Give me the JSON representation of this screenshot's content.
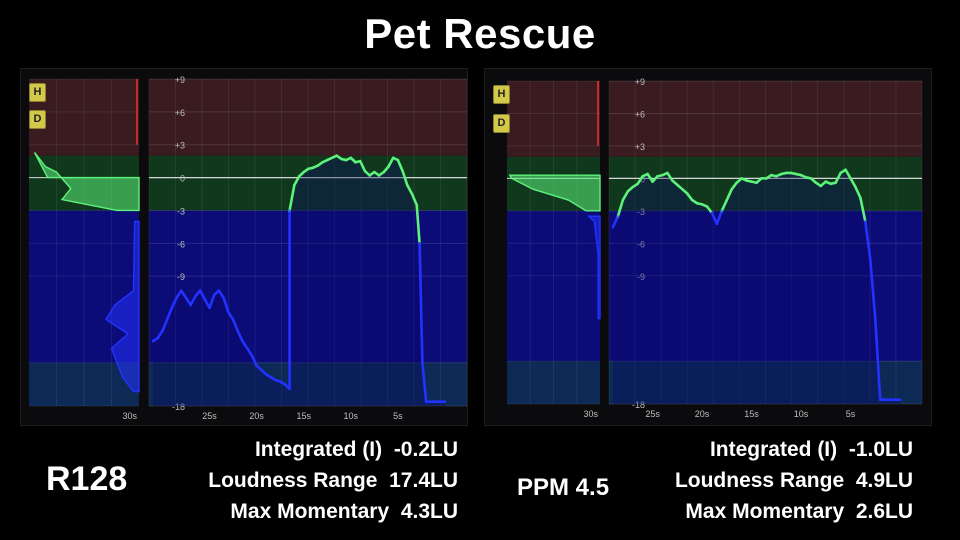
{
  "title": "Pet Rescue",
  "meters": [
    {
      "name": "R128",
      "buttons": [
        "H",
        "D"
      ],
      "stats": [
        {
          "label": "Integrated (I)",
          "value": "-0.2LU"
        },
        {
          "label": "Loudness Range",
          "value": "17.4LU"
        },
        {
          "label": "Max Momentary",
          "value": "4.3LU"
        }
      ]
    },
    {
      "name": "PPM 4.5",
      "buttons": [
        "H",
        "D"
      ],
      "stats": [
        {
          "label": "Integrated (I)",
          "value": "-1.0LU"
        },
        {
          "label": "Loudness Range",
          "value": "4.9LU"
        },
        {
          "label": "Max Momentary",
          "value": "2.6LU"
        }
      ]
    }
  ],
  "chart_data": [
    {
      "type": "line",
      "meter": "R128",
      "ylim": [
        -18,
        9
      ],
      "yticks": [
        "+9",
        "+6",
        "+3",
        "0",
        "-3",
        "-6",
        "-9",
        "-18"
      ],
      "xticks": [
        "30s",
        "25s",
        "20s",
        "15s",
        "10s",
        "5s"
      ],
      "xlim": [
        31,
        0
      ],
      "x": [
        31,
        30.5,
        30,
        29.5,
        29,
        28.5,
        28,
        27.5,
        27,
        26.5,
        26,
        25.5,
        25,
        24.5,
        24,
        23.5,
        23,
        22.5,
        22,
        21.5,
        21,
        20.5,
        20,
        19.5,
        19,
        18.5,
        18,
        17.5,
        17,
        16.5,
        16.5,
        16,
        15.5,
        15,
        14.5,
        14,
        13.5,
        13,
        12.5,
        12,
        11.5,
        11,
        10.5,
        10,
        9.5,
        9,
        8.5,
        8,
        7.5,
        7,
        6.5,
        6,
        5.5,
        5,
        4.5,
        4,
        3.5,
        3,
        2.7,
        2.4,
        2,
        1,
        0
      ],
      "y": [
        -13.5,
        -13.3,
        -12.8,
        -12.0,
        -11.2,
        -10.5,
        -10.0,
        -10.5,
        -11.0,
        -10.4,
        -10.0,
        -10.6,
        -11.2,
        -10.3,
        -10.0,
        -10.5,
        -11.5,
        -12.0,
        -12.8,
        -13.5,
        -14.0,
        -14.5,
        -15.2,
        -15.5,
        -15.8,
        -16.0,
        -16.2,
        -16.3,
        -16.5,
        -16.8,
        -3.0,
        -0.7,
        0.1,
        0.5,
        0.8,
        0.9,
        1.1,
        1.4,
        1.6,
        1.8,
        2.0,
        1.7,
        1.6,
        1.8,
        1.4,
        1.5,
        0.6,
        0.2,
        0.5,
        0.2,
        0.5,
        1.0,
        1.8,
        1.6,
        0.6,
        -0.7,
        -1.5,
        -2.5,
        -6.0,
        -15.0,
        -17.7,
        -17.7,
        -17.7
      ]
    },
    {
      "type": "line",
      "meter": "PPM 4.5",
      "ylim": [
        -18,
        9
      ],
      "yticks": [
        "+9",
        "+6",
        "+3",
        "0",
        "-3",
        "-6",
        "-9",
        "-18"
      ],
      "xticks": [
        "30s",
        "25s",
        "20s",
        "15s",
        "10s",
        "5s"
      ],
      "xlim": [
        29,
        0
      ],
      "x": [
        29,
        28.5,
        28,
        27.5,
        27,
        26.5,
        26,
        25.5,
        25,
        24.5,
        24,
        23.5,
        23,
        22.5,
        22,
        21.5,
        21,
        20.5,
        20,
        19.5,
        19,
        18.5,
        18,
        17.5,
        17,
        16.5,
        16,
        15.5,
        15,
        14.5,
        14,
        13.5,
        13,
        12.5,
        12,
        11.5,
        11,
        10.5,
        10,
        9.5,
        9,
        8.5,
        8,
        7.5,
        7,
        6.5,
        6,
        5.5,
        5,
        4.5,
        4,
        3.5,
        3,
        2.5,
        2,
        1.5,
        1,
        0
      ],
      "y": [
        -4.5,
        -3.5,
        -2.0,
        -1.2,
        -0.8,
        -0.5,
        0.2,
        0.4,
        -0.3,
        0.2,
        0.3,
        0.5,
        -0.2,
        -0.6,
        -1.0,
        -1.4,
        -2.0,
        -2.3,
        -2.4,
        -2.6,
        -3.2,
        -4.2,
        -3.0,
        -2.0,
        -1.0,
        -0.4,
        0.0,
        -0.2,
        -0.3,
        -0.4,
        0.0,
        0.0,
        0.3,
        0.2,
        0.4,
        0.5,
        0.5,
        0.4,
        0.3,
        0.1,
        0.0,
        -0.4,
        -0.7,
        -0.3,
        -0.5,
        -0.4,
        0.5,
        0.8,
        0.0,
        -0.8,
        -1.8,
        -4.0,
        -7.5,
        -12.0,
        -17.7,
        -17.7,
        -17.7,
        -17.7
      ]
    }
  ],
  "colors": {
    "red_zone": "#3a1b20",
    "green_zone": "#10381d",
    "blue_zone": "#0c0c78",
    "green_line": "#5df27a",
    "blue_line": "#2432ff",
    "zero_line": "#d8d8d8"
  }
}
